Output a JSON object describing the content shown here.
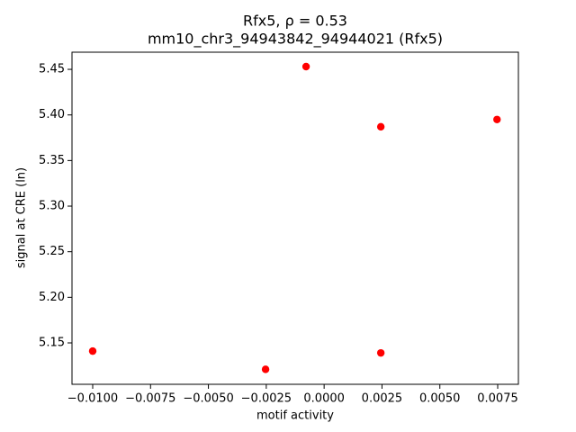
{
  "chart_data": {
    "type": "scatter",
    "title": "Rfx5, ρ = 0.53",
    "subtitle": "mm10_chr3_94943842_94944021 (Rfx5)",
    "x_label": "motif activity",
    "y_label": "signal at CRE (ln)",
    "color": "#ff0000",
    "x": [
      -0.01,
      -0.00253,
      -0.00078,
      0.00245,
      0.00245,
      0.00747
    ],
    "values": [
      5.141,
      5.121,
      5.453,
      5.387,
      5.139,
      5.395
    ],
    "xlim": [
      -0.010894,
      0.008394
    ],
    "ylim": [
      5.1046,
      5.4688
    ],
    "xticks": [
      {
        "value": -0.01,
        "label": "−0.0100"
      },
      {
        "value": -0.0075,
        "label": "−0.0075"
      },
      {
        "value": -0.005,
        "label": "−0.0050"
      },
      {
        "value": -0.0025,
        "label": "−0.0025"
      },
      {
        "value": 0,
        "label": "0.0000"
      },
      {
        "value": 0.0025,
        "label": "0.0025"
      },
      {
        "value": 0.005,
        "label": "0.0050"
      },
      {
        "value": 0.0075,
        "label": "0.0075"
      }
    ],
    "yticks": [
      5.15,
      {
        "value": 5.2,
        "label": "5.20"
      },
      5.25,
      {
        "value": 5.3,
        "label": "5.30"
      },
      5.35,
      {
        "value": 5.4,
        "label": "5.40"
      },
      5.45
    ],
    "grid": false
  }
}
